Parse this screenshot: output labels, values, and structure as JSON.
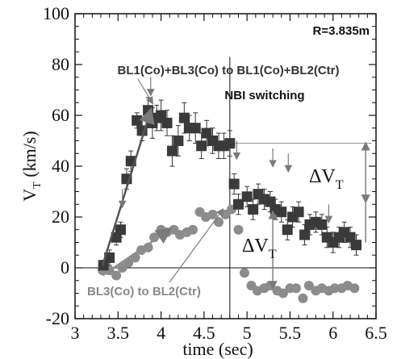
{
  "chart_data": {
    "type": "scatter",
    "xlabel": "time (sec)",
    "xlim": [
      3,
      6.5
    ],
    "ylim": [
      -20,
      100
    ],
    "xticks": [
      "3",
      "3.5",
      "4",
      "4.5",
      "5",
      "5.5",
      "6",
      "6.5"
    ],
    "yticks": [
      "-20",
      "0",
      "20",
      "40",
      "60",
      "80",
      "100"
    ],
    "grid": false,
    "annotations": {
      "radius": "R=3.835m",
      "switching": "NBI switching",
      "upper_label": "BL1(Co)+BL3(Co) to BL1(Co)+BL2(Ctr)",
      "lower_label": "BL3(Co) to BL2(Ctr)",
      "delta_symbol": "ΔV",
      "delta_sub": "T",
      "switch_time": 4.8,
      "ref_level": 49
    },
    "colors": {
      "series1": "#3a3a3a",
      "series2": "#8c8c8c",
      "arrow": "#7a7a7a"
    },
    "series": [
      {
        "marker": "square",
        "x": [
          3.33,
          3.4,
          3.48,
          3.53,
          3.6,
          3.65,
          3.72,
          3.78,
          3.85,
          3.9,
          3.95,
          4.0,
          4.07,
          4.13,
          4.2,
          4.27,
          4.33,
          4.4,
          4.47,
          4.53,
          4.6,
          4.67,
          4.73,
          4.8,
          4.85,
          4.9,
          5.0,
          5.07,
          5.13,
          5.2,
          5.27,
          5.33,
          5.4,
          5.47,
          5.53,
          5.6,
          5.67,
          5.73,
          5.8,
          5.87,
          5.93,
          6.0,
          6.07,
          6.13,
          6.2,
          6.27
        ],
        "y": [
          1,
          4,
          12,
          15,
          35,
          42,
          58,
          54,
          62,
          57,
          59,
          60,
          57,
          46,
          50,
          59,
          55,
          55,
          48,
          53,
          50,
          48,
          48,
          49,
          33,
          25,
          28,
          23,
          29,
          27,
          26,
          23,
          22,
          15,
          20,
          22,
          13,
          17,
          18,
          17,
          12,
          10,
          12,
          14,
          12,
          9
        ],
        "err": [
          2,
          3,
          3,
          3,
          4,
          4,
          3,
          4,
          5,
          6,
          5,
          6,
          5,
          6,
          6,
          6,
          5,
          6,
          5,
          5,
          5,
          5,
          5,
          5,
          4,
          4,
          4,
          4,
          4,
          4,
          4,
          4,
          4,
          4,
          4,
          4,
          4,
          4,
          4,
          4,
          4,
          4,
          4,
          4,
          4,
          4
        ]
      },
      {
        "marker": "circle",
        "x": [
          3.32,
          3.4,
          3.48,
          3.55,
          3.62,
          3.7,
          3.77,
          3.85,
          3.92,
          4.0,
          4.07,
          4.15,
          4.22,
          4.3,
          4.37,
          4.45,
          4.52,
          4.6,
          4.67,
          4.75,
          4.82,
          4.9,
          4.97,
          5.05,
          5.12,
          5.2,
          5.27,
          5.35,
          5.42,
          5.5,
          5.57,
          5.65,
          5.72,
          5.8,
          5.87,
          5.95,
          6.02,
          6.1,
          6.17,
          6.25
        ],
        "y": [
          -1,
          -1,
          -3,
          0,
          2,
          4,
          7,
          8,
          12,
          15,
          14,
          15,
          13,
          14,
          15,
          22,
          20,
          21,
          18,
          21,
          23,
          15,
          -2,
          -7,
          -9,
          -8,
          -7,
          -9,
          -10,
          -8,
          -8,
          -12,
          -7,
          -9,
          -8,
          -9,
          -8,
          -8,
          -7,
          -8
        ]
      }
    ],
    "down_arrows_x": [
      3.55,
      3.88,
      4.88,
      5.3,
      5.48,
      5.95
    ]
  }
}
